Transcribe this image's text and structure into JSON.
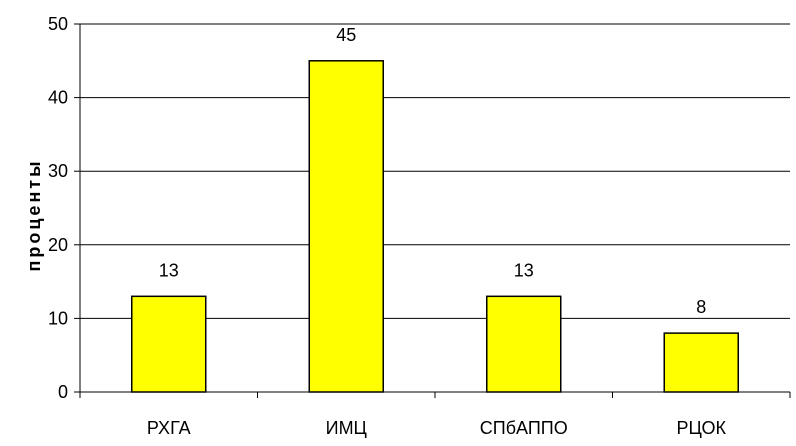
{
  "chart_data": {
    "type": "bar",
    "title": "",
    "xlabel": "",
    "ylabel": "проценты",
    "categories": [
      "РХГА",
      "ИМЦ",
      "СПбАППО",
      "РЦОК"
    ],
    "values": [
      13,
      45,
      13,
      8
    ],
    "data_labels": [
      "13",
      "45",
      "13",
      "8"
    ],
    "ylim": [
      0,
      50
    ],
    "yticks": [
      0,
      10,
      20,
      30,
      40,
      50
    ],
    "ytick_labels": [
      "0",
      "10",
      "20",
      "30",
      "40",
      "50"
    ],
    "grid": true,
    "legend": "none",
    "colors": {
      "bar": "#ffff00",
      "bar_border": "#000000",
      "grid": "#000000"
    }
  }
}
